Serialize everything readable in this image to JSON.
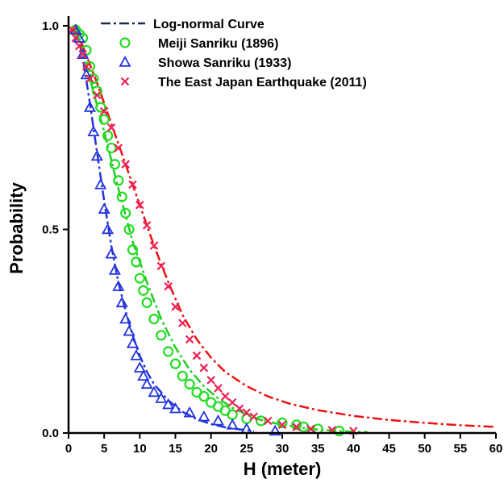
{
  "chart_data": {
    "type": "scatter",
    "xlabel": "H (meter)",
    "ylabel": "Probability",
    "xlim": [
      0,
      60
    ],
    "ylim": [
      0,
      1.0
    ],
    "x_ticks": [
      "0",
      "5",
      "10",
      "15",
      "20",
      "25",
      "30",
      "35",
      "40",
      "45",
      "50",
      "55",
      "60"
    ],
    "y_ticks": [
      "0.0",
      "0.5",
      "1.0"
    ],
    "grid": false,
    "legend_position": "top-right",
    "legend": [
      "Log-normal Curve",
      "Meiji Sanriku (1896)",
      "Showa Sanriku (1933)",
      "The East Japan Earthquake (2011)"
    ],
    "series": [
      {
        "name": "Meiji Sanriku (1896)",
        "marker": "circle",
        "color": "#22dd22",
        "points": [
          [
            1,
            0.99
          ],
          [
            1.5,
            0.98
          ],
          [
            2,
            0.97
          ],
          [
            2.5,
            0.94
          ],
          [
            3,
            0.9
          ],
          [
            3.5,
            0.87
          ],
          [
            4,
            0.84
          ],
          [
            4.5,
            0.8
          ],
          [
            5,
            0.77
          ],
          [
            5.5,
            0.73
          ],
          [
            6,
            0.7
          ],
          [
            6.5,
            0.66
          ],
          [
            7,
            0.62
          ],
          [
            7.5,
            0.58
          ],
          [
            8,
            0.54
          ],
          [
            8.5,
            0.5
          ],
          [
            9,
            0.45
          ],
          [
            9.5,
            0.42
          ],
          [
            10,
            0.38
          ],
          [
            10.5,
            0.35
          ],
          [
            11,
            0.32
          ],
          [
            12,
            0.28
          ],
          [
            13,
            0.24
          ],
          [
            14,
            0.2
          ],
          [
            15,
            0.17
          ],
          [
            16,
            0.14
          ],
          [
            17,
            0.12
          ],
          [
            18,
            0.1
          ],
          [
            19,
            0.09
          ],
          [
            20,
            0.075
          ],
          [
            21,
            0.065
          ],
          [
            22,
            0.055
          ],
          [
            23,
            0.045
          ],
          [
            25,
            0.035
          ],
          [
            27,
            0.03
          ],
          [
            30,
            0.025
          ],
          [
            32,
            0.02
          ],
          [
            33,
            0.015
          ],
          [
            35,
            0.01
          ],
          [
            38,
            0.005
          ]
        ]
      },
      {
        "name": "Showa Sanriku (1933)",
        "marker": "triangle",
        "color": "#2233dd",
        "points": [
          [
            1,
            0.99
          ],
          [
            1.5,
            0.97
          ],
          [
            2,
            0.93
          ],
          [
            2.5,
            0.88
          ],
          [
            3,
            0.8
          ],
          [
            3.5,
            0.74
          ],
          [
            4,
            0.68
          ],
          [
            4.5,
            0.61
          ],
          [
            5,
            0.55
          ],
          [
            5.5,
            0.5
          ],
          [
            6,
            0.44
          ],
          [
            6.5,
            0.4
          ],
          [
            7,
            0.36
          ],
          [
            7.5,
            0.32
          ],
          [
            8,
            0.28
          ],
          [
            8.5,
            0.25
          ],
          [
            9,
            0.22
          ],
          [
            9.5,
            0.19
          ],
          [
            10,
            0.16
          ],
          [
            10.5,
            0.14
          ],
          [
            11,
            0.12
          ],
          [
            12,
            0.1
          ],
          [
            13,
            0.085
          ],
          [
            14,
            0.07
          ],
          [
            15,
            0.06
          ],
          [
            17,
            0.05
          ],
          [
            19,
            0.04
          ],
          [
            21,
            0.03
          ],
          [
            23,
            0.02
          ],
          [
            25,
            0.01
          ],
          [
            29,
            0.005
          ]
        ]
      },
      {
        "name": "The East Japan Earthquake (2011)",
        "marker": "cross",
        "color": "#ee2255",
        "points": [
          [
            0.5,
            0.99
          ],
          [
            1,
            0.97
          ],
          [
            1.5,
            0.95
          ],
          [
            2,
            0.93
          ],
          [
            2.5,
            0.9
          ],
          [
            3,
            0.87
          ],
          [
            4,
            0.83
          ],
          [
            5,
            0.79
          ],
          [
            6,
            0.75
          ],
          [
            7,
            0.7
          ],
          [
            8,
            0.66
          ],
          [
            9,
            0.61
          ],
          [
            10,
            0.56
          ],
          [
            11,
            0.51
          ],
          [
            12,
            0.46
          ],
          [
            13,
            0.41
          ],
          [
            14,
            0.36
          ],
          [
            15,
            0.31
          ],
          [
            16,
            0.27
          ],
          [
            17,
            0.23
          ],
          [
            18,
            0.19
          ],
          [
            19,
            0.16
          ],
          [
            20,
            0.13
          ],
          [
            21,
            0.11
          ],
          [
            22,
            0.09
          ],
          [
            23,
            0.075
          ],
          [
            24,
            0.06
          ],
          [
            25,
            0.05
          ],
          [
            26,
            0.04
          ],
          [
            28,
            0.03
          ],
          [
            30,
            0.02
          ],
          [
            32,
            0.015
          ],
          [
            34,
            0.01
          ],
          [
            37,
            0.007
          ],
          [
            40,
            0.005
          ]
        ]
      }
    ],
    "curves": [
      {
        "name": "Log-normal Curve",
        "style": "dash-dot",
        "color": "#22cc22",
        "points": [
          [
            1,
            1.0
          ],
          [
            3,
            0.87
          ],
          [
            5,
            0.74
          ],
          [
            7,
            0.6
          ],
          [
            9,
            0.47
          ],
          [
            11,
            0.37
          ],
          [
            13,
            0.28
          ],
          [
            15,
            0.21
          ],
          [
            17,
            0.155
          ],
          [
            19,
            0.115
          ],
          [
            21,
            0.085
          ],
          [
            23,
            0.062
          ],
          [
            25,
            0.045
          ],
          [
            27,
            0.032
          ],
          [
            30,
            0.02
          ],
          [
            34,
            0.01
          ],
          [
            38,
            0.005
          ],
          [
            42,
            0.002
          ]
        ]
      },
      {
        "name": "Log-normal Curve",
        "style": "dash-dot",
        "color": "#2233dd",
        "points": [
          [
            1,
            1.0
          ],
          [
            2,
            0.92
          ],
          [
            3,
            0.81
          ],
          [
            4,
            0.69
          ],
          [
            5,
            0.57
          ],
          [
            6,
            0.46
          ],
          [
            7,
            0.37
          ],
          [
            8,
            0.3
          ],
          [
            9,
            0.24
          ],
          [
            10,
            0.19
          ],
          [
            11,
            0.15
          ],
          [
            12,
            0.12
          ],
          [
            14,
            0.08
          ],
          [
            16,
            0.052
          ],
          [
            18,
            0.034
          ],
          [
            20,
            0.022
          ],
          [
            22,
            0.014
          ],
          [
            24,
            0.009
          ],
          [
            26,
            0.005
          ]
        ]
      },
      {
        "name": "Log-normal Curve",
        "style": "dash-dot",
        "color": "#ee1111",
        "points": [
          [
            0.5,
            1.0
          ],
          [
            2,
            0.95
          ],
          [
            4,
            0.86
          ],
          [
            6,
            0.76
          ],
          [
            8,
            0.66
          ],
          [
            10,
            0.56
          ],
          [
            12,
            0.46
          ],
          [
            14,
            0.37
          ],
          [
            16,
            0.29
          ],
          [
            18,
            0.23
          ],
          [
            20,
            0.185
          ],
          [
            22,
            0.15
          ],
          [
            25,
            0.115
          ],
          [
            28,
            0.09
          ],
          [
            31,
            0.072
          ],
          [
            35,
            0.056
          ],
          [
            40,
            0.042
          ],
          [
            45,
            0.032
          ],
          [
            50,
            0.025
          ],
          [
            55,
            0.019
          ],
          [
            60,
            0.015
          ]
        ]
      }
    ]
  }
}
